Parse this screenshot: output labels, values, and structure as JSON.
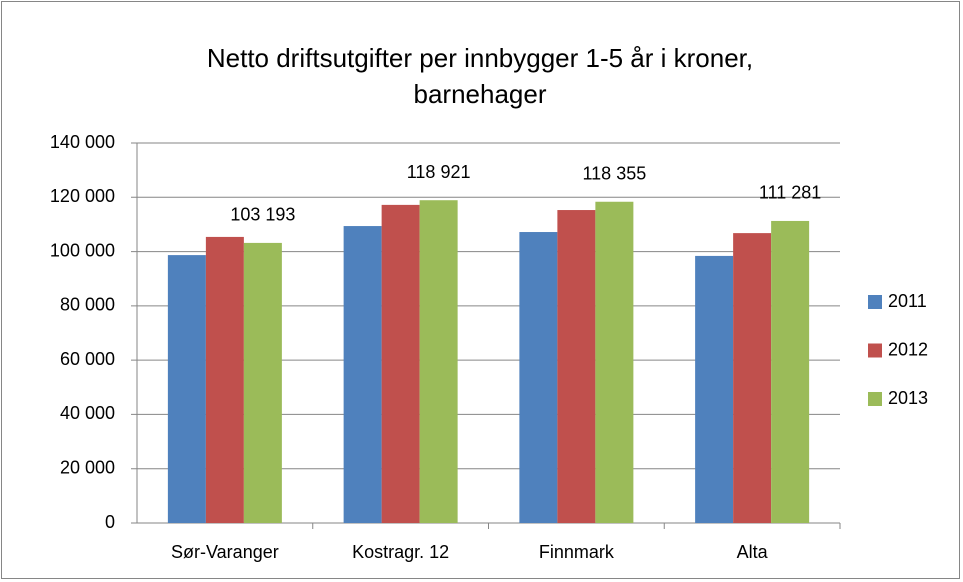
{
  "chart_data": {
    "type": "bar",
    "title": "Netto driftsutgifter per innbygger 1-5 år i kroner, barnehager",
    "categories": [
      "Sør-Varanger",
      "Kostragr. 12",
      "Finnmark",
      "Alta"
    ],
    "series": [
      {
        "name": "2011",
        "color": "#4f81bd",
        "values": [
          98700,
          109400,
          107200,
          98400
        ]
      },
      {
        "name": "2012",
        "color": "#c0504d",
        "values": [
          105400,
          117200,
          115300,
          106800
        ]
      },
      {
        "name": "2013",
        "color": "#9bbb59",
        "values": [
          103193,
          118921,
          118355,
          111281
        ],
        "value_labels": [
          "103 193",
          "118 921",
          "118 355",
          "111 281"
        ]
      }
    ],
    "ylim": [
      0,
      140000
    ],
    "yticks": [
      0,
      {
        "value": 20000,
        "label": "20 000"
      },
      {
        "value": 40000,
        "label": "40 000"
      },
      {
        "value": 60000,
        "label": "60 000"
      },
      {
        "value": 80000,
        "label": "80 000"
      },
      {
        "value": 100000,
        "label": "100 000"
      },
      {
        "value": 120000,
        "label": "120 000"
      },
      {
        "value": 140000,
        "label": "140 000"
      }
    ],
    "grid": true,
    "legend": "right"
  }
}
